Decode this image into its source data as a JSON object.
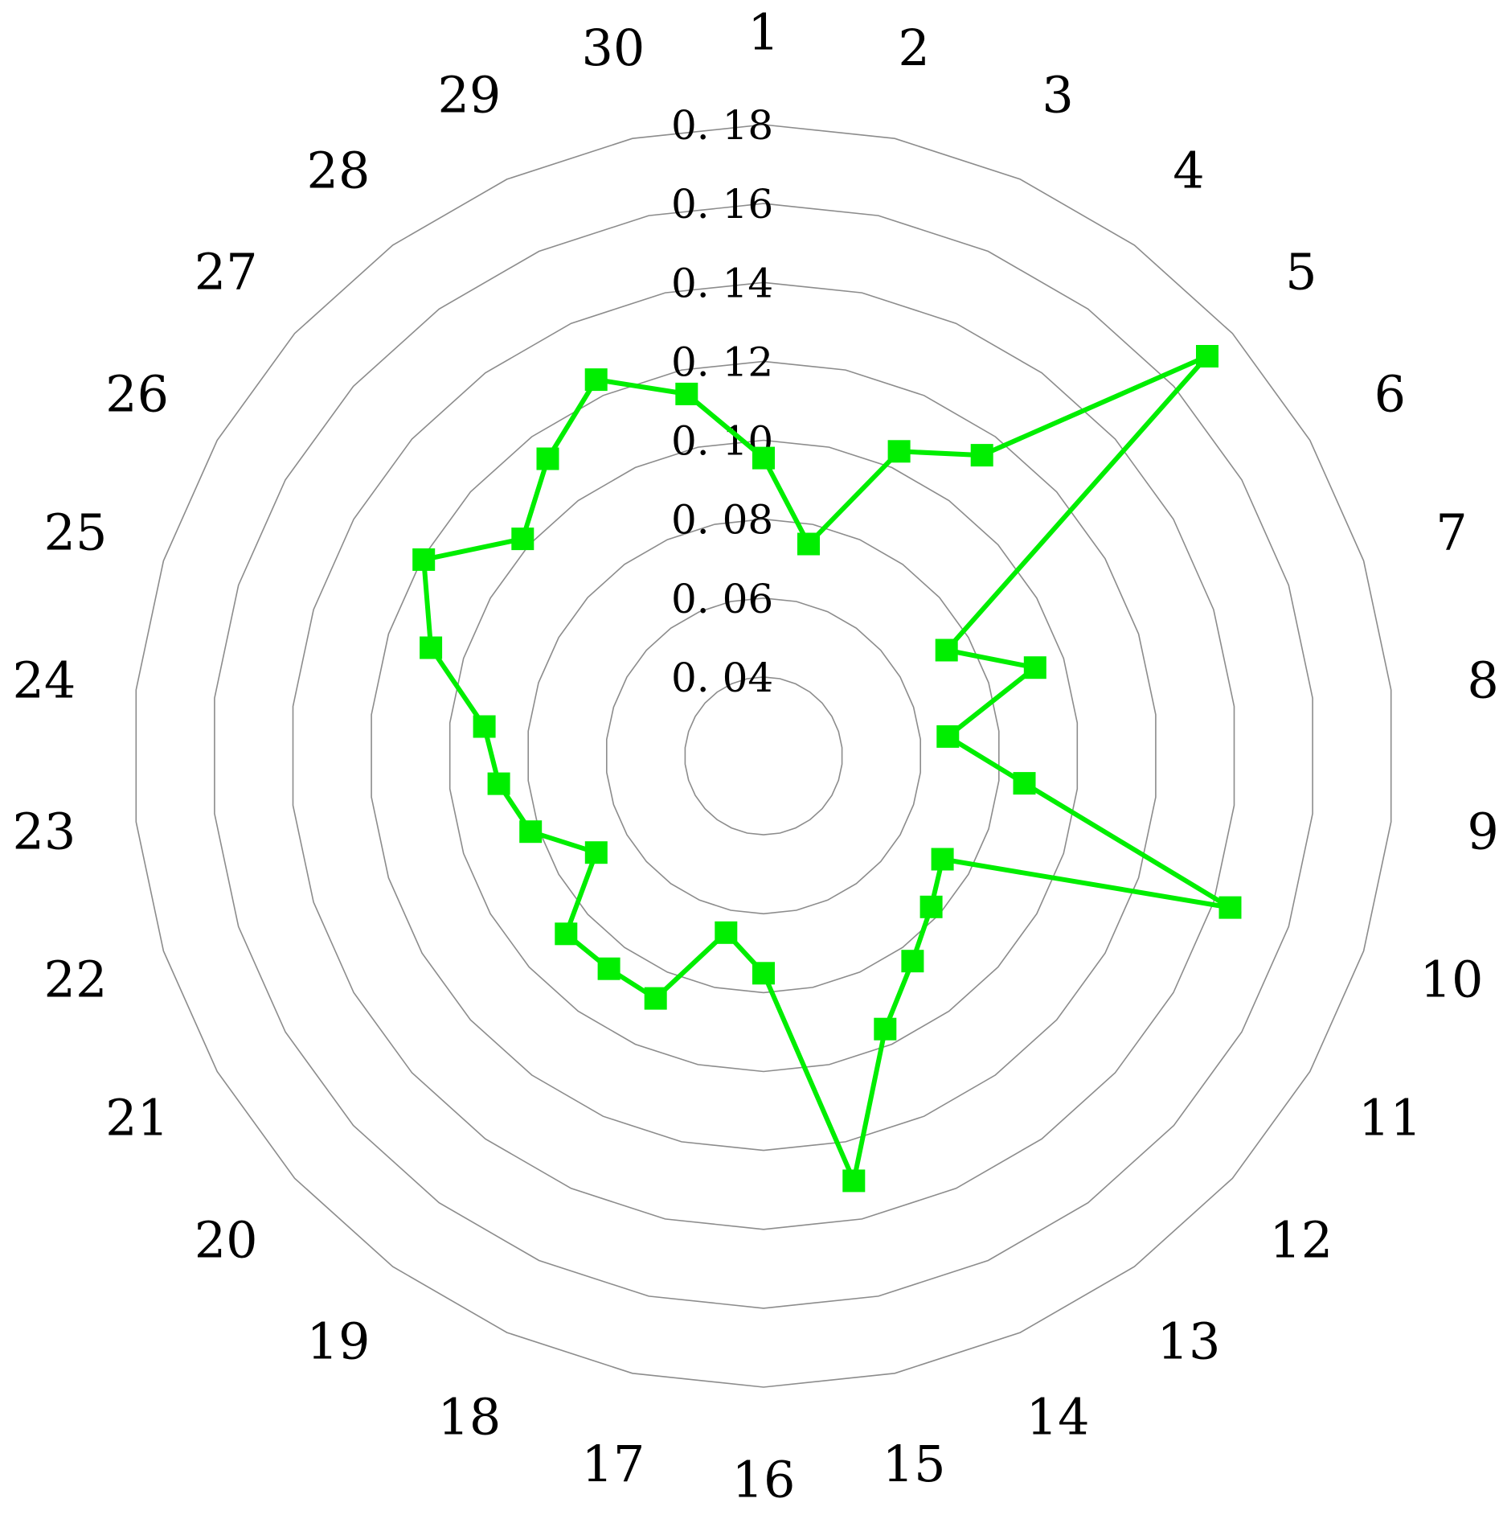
{
  "chart_data": {
    "type": "radar",
    "categories": [
      "1",
      "2",
      "3",
      "4",
      "5",
      "6",
      "7",
      "8",
      "9",
      "10",
      "11",
      "12",
      "13",
      "14",
      "15",
      "16",
      "17",
      "18",
      "19",
      "20",
      "21",
      "22",
      "23",
      "24",
      "25",
      "26",
      "27",
      "28",
      "29",
      "30"
    ],
    "r_ticks": [
      "0. 04",
      "0. 06",
      "0. 08",
      "0. 10",
      "0. 12",
      "0. 14",
      "0. 16",
      "0. 18"
    ],
    "r_tick_values": [
      0.04,
      0.06,
      0.08,
      0.1,
      0.12,
      0.14,
      0.16,
      0.18
    ],
    "rlim": [
      0.02,
      0.18
    ],
    "grid": true,
    "legend": "none",
    "series": [
      {
        "color": "#00ee00",
        "marker": "square",
        "values": [
          0.0955,
          0.0749,
          0.1045,
          0.1142,
          0.1714,
          0.0736,
          0.0924,
          0.067,
          0.0865,
          0.1444,
          0.0724,
          0.0772,
          0.0843,
          0.0958,
          0.1301,
          0.0751,
          0.0658,
          0.0873,
          0.0867,
          0.0874,
          0.069,
          0.0821,
          0.0875,
          0.0912,
          0.1087,
          0.1195,
          0.1022,
          0.1131,
          0.1244,
          0.1138
        ]
      }
    ]
  }
}
